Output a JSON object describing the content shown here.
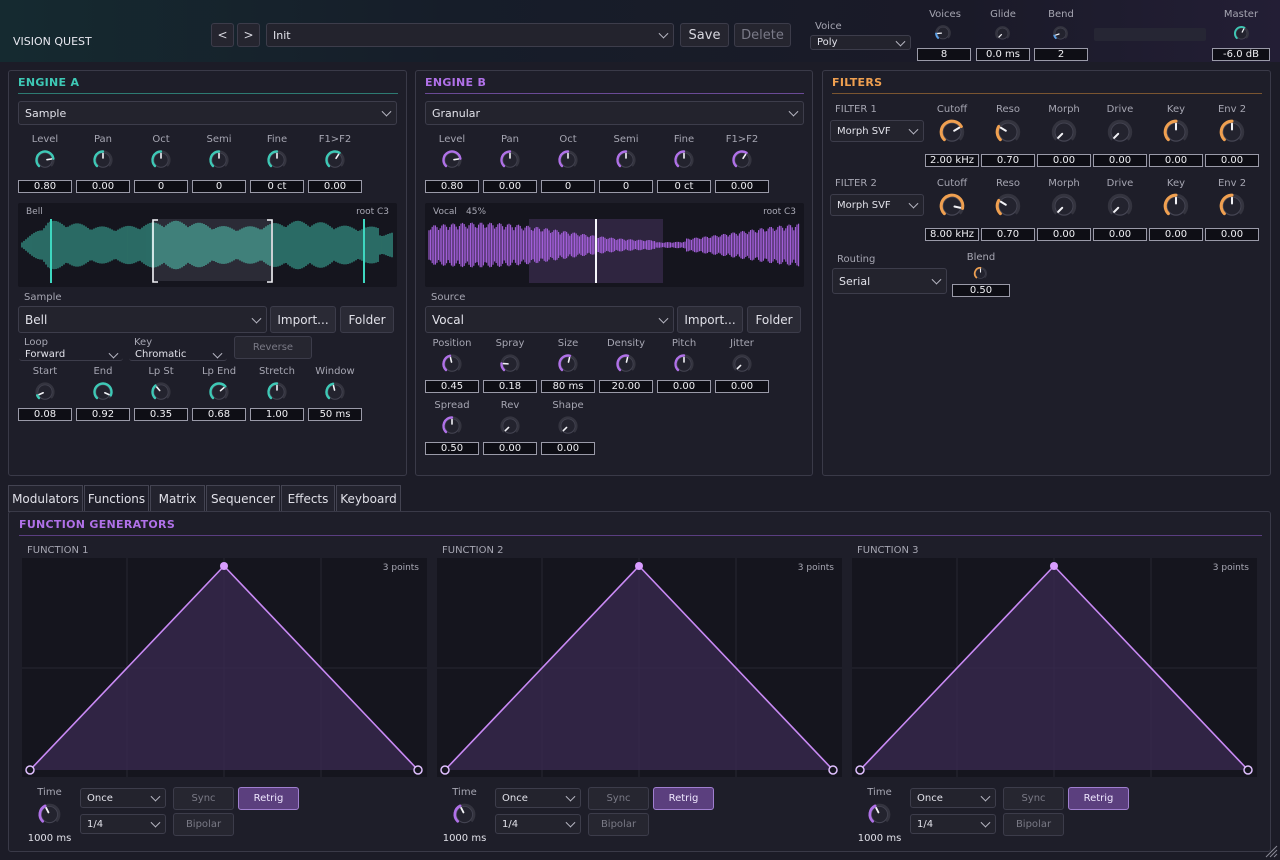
{
  "app": {
    "title": "VISION QUEST"
  },
  "header": {
    "prev_label": "<",
    "next_label": ">",
    "preset": "Init",
    "save_label": "Save",
    "delete_label": "Delete",
    "voice_label": "Voice",
    "voice_mode": "Poly",
    "voices_label": "Voices",
    "voices_value": "8",
    "glide_label": "Glide",
    "glide_value": "0.0 ms",
    "bend_label": "Bend",
    "bend_value": "2",
    "master_label": "Master",
    "master_value": "-6.0 dB"
  },
  "engine_a": {
    "title": "ENGINE A",
    "type": "Sample",
    "knobs": [
      {
        "label": "Level",
        "value": "0.80",
        "level": 0.8
      },
      {
        "label": "Pan",
        "value": "0.00",
        "level": 0.5
      },
      {
        "label": "Oct",
        "value": "0",
        "level": 0.5
      },
      {
        "label": "Semi",
        "value": "0",
        "level": 0.5
      },
      {
        "label": "Fine",
        "value": "0 ct",
        "level": 0.5
      },
      {
        "label": "F1>F2",
        "value": "0.00",
        "level": 0.62
      }
    ],
    "wave_name": "Bell",
    "wave_root": "root C3",
    "sample_label": "Sample",
    "sample": "Bell",
    "import_label": "Import...",
    "folder_label": "Folder",
    "loop_label": "Loop",
    "loop": "Forward",
    "key_label": "Key",
    "key": "Chromatic",
    "reverse_label": "Reverse",
    "knobs2": [
      {
        "label": "Start",
        "value": "0.08",
        "level": 0.08
      },
      {
        "label": "End",
        "value": "0.92",
        "level": 0.92
      },
      {
        "label": "Lp St",
        "value": "0.35",
        "level": 0.35
      },
      {
        "label": "Lp End",
        "value": "0.68",
        "level": 0.68
      },
      {
        "label": "Stretch",
        "value": "1.00",
        "level": 0.5
      },
      {
        "label": "Window",
        "value": "50 ms",
        "level": 0.45
      }
    ]
  },
  "engine_b": {
    "title": "ENGINE B",
    "type": "Granular",
    "knobs": [
      {
        "label": "Level",
        "value": "0.80",
        "level": 0.8
      },
      {
        "label": "Pan",
        "value": "0.00",
        "level": 0.5
      },
      {
        "label": "Oct",
        "value": "0",
        "level": 0.5
      },
      {
        "label": "Semi",
        "value": "0",
        "level": 0.5
      },
      {
        "label": "Fine",
        "value": "0 ct",
        "level": 0.5
      },
      {
        "label": "F1>F2",
        "value": "0.00",
        "level": 0.62
      }
    ],
    "wave_name": "Vocal",
    "wave_pos": "45%",
    "wave_root": "root C3",
    "source_label": "Source",
    "source": "Vocal",
    "import_label": "Import...",
    "folder_label": "Folder",
    "knobs2": [
      {
        "label": "Position",
        "value": "0.45",
        "level": 0.45
      },
      {
        "label": "Spray",
        "value": "0.18",
        "level": 0.18
      },
      {
        "label": "Size",
        "value": "80 ms",
        "level": 0.55
      },
      {
        "label": "Density",
        "value": "20.00",
        "level": 0.55
      },
      {
        "label": "Pitch",
        "value": "0.00",
        "level": 0.5
      },
      {
        "label": "Jitter",
        "value": "0.00",
        "level": 0.0
      }
    ],
    "knobs3": [
      {
        "label": "Spread",
        "value": "0.50",
        "level": 0.5
      },
      {
        "label": "Rev",
        "value": "0.00",
        "level": 0.0
      },
      {
        "label": "Shape",
        "value": "0.00",
        "level": 0.0
      }
    ]
  },
  "filters": {
    "title": "FILTERS",
    "filter1": {
      "label": "FILTER 1",
      "type": "Morph SVF",
      "knobs": [
        {
          "label": "Cutoff",
          "value": "2.00 kHz",
          "level": 0.72
        },
        {
          "label": "Reso",
          "value": "0.70",
          "level": 0.28
        },
        {
          "label": "Morph",
          "value": "0.00",
          "level": 0.0
        },
        {
          "label": "Drive",
          "value": "0.00",
          "level": 0.0
        },
        {
          "label": "Key",
          "value": "0.00",
          "level": 0.5
        },
        {
          "label": "Env 2",
          "value": "0.00",
          "level": 0.5
        }
      ]
    },
    "filter2": {
      "label": "FILTER 2",
      "type": "Morph SVF",
      "knobs": [
        {
          "label": "Cutoff",
          "value": "8.00 kHz",
          "level": 0.88
        },
        {
          "label": "Reso",
          "value": "0.70",
          "level": 0.28
        },
        {
          "label": "Morph",
          "value": "0.00",
          "level": 0.0
        },
        {
          "label": "Drive",
          "value": "0.00",
          "level": 0.0
        },
        {
          "label": "Key",
          "value": "0.00",
          "level": 0.5
        },
        {
          "label": "Env 2",
          "value": "0.00",
          "level": 0.5
        }
      ]
    },
    "routing_label": "Routing",
    "routing": "Serial",
    "blend_label": "Blend",
    "blend_value": "0.50"
  },
  "tabs": [
    "Modulators",
    "Functions",
    "Matrix",
    "Sequencer",
    "Effects",
    "Keyboard"
  ],
  "functions": {
    "title": "FUNCTION GENERATORS",
    "items": [
      {
        "label": "FUNCTION 1",
        "points": "3 points",
        "time_label": "Time",
        "time_value": "1000 ms",
        "mode": "Once",
        "rate": "1/4",
        "sync_label": "Sync",
        "retrig_label": "Retrig",
        "bipolar_label": "Bipolar"
      },
      {
        "label": "FUNCTION 2",
        "points": "3 points",
        "time_label": "Time",
        "time_value": "1000 ms",
        "mode": "Once",
        "rate": "1/4",
        "sync_label": "Sync",
        "retrig_label": "Retrig",
        "bipolar_label": "Bipolar"
      },
      {
        "label": "FUNCTION 3",
        "points": "3 points",
        "time_label": "Time",
        "time_value": "1000 ms",
        "mode": "Once",
        "rate": "1/4",
        "sync_label": "Sync",
        "retrig_label": "Retrig",
        "bipolar_label": "Bipolar"
      }
    ]
  },
  "colors": {
    "teal": "#3ec9b6",
    "purple": "#b071e8",
    "orange": "#f0a050",
    "blue": "#5aa0e8",
    "fn_line": "#c98af5"
  }
}
